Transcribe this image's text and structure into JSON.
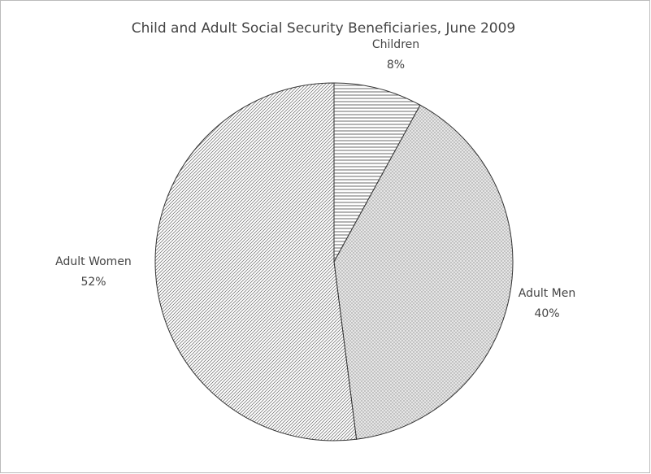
{
  "chart_data": {
    "type": "pie",
    "title": "Child and Adult Social Security Beneficiaries, June 2009",
    "categories": [
      "Children",
      "Adult Men",
      "Adult Women"
    ],
    "values": [
      8,
      40,
      52
    ],
    "value_labels": [
      "8%",
      "40%",
      "52%"
    ],
    "colors": [
      "#444444",
      "#8a8a8a",
      "#666666"
    ]
  }
}
